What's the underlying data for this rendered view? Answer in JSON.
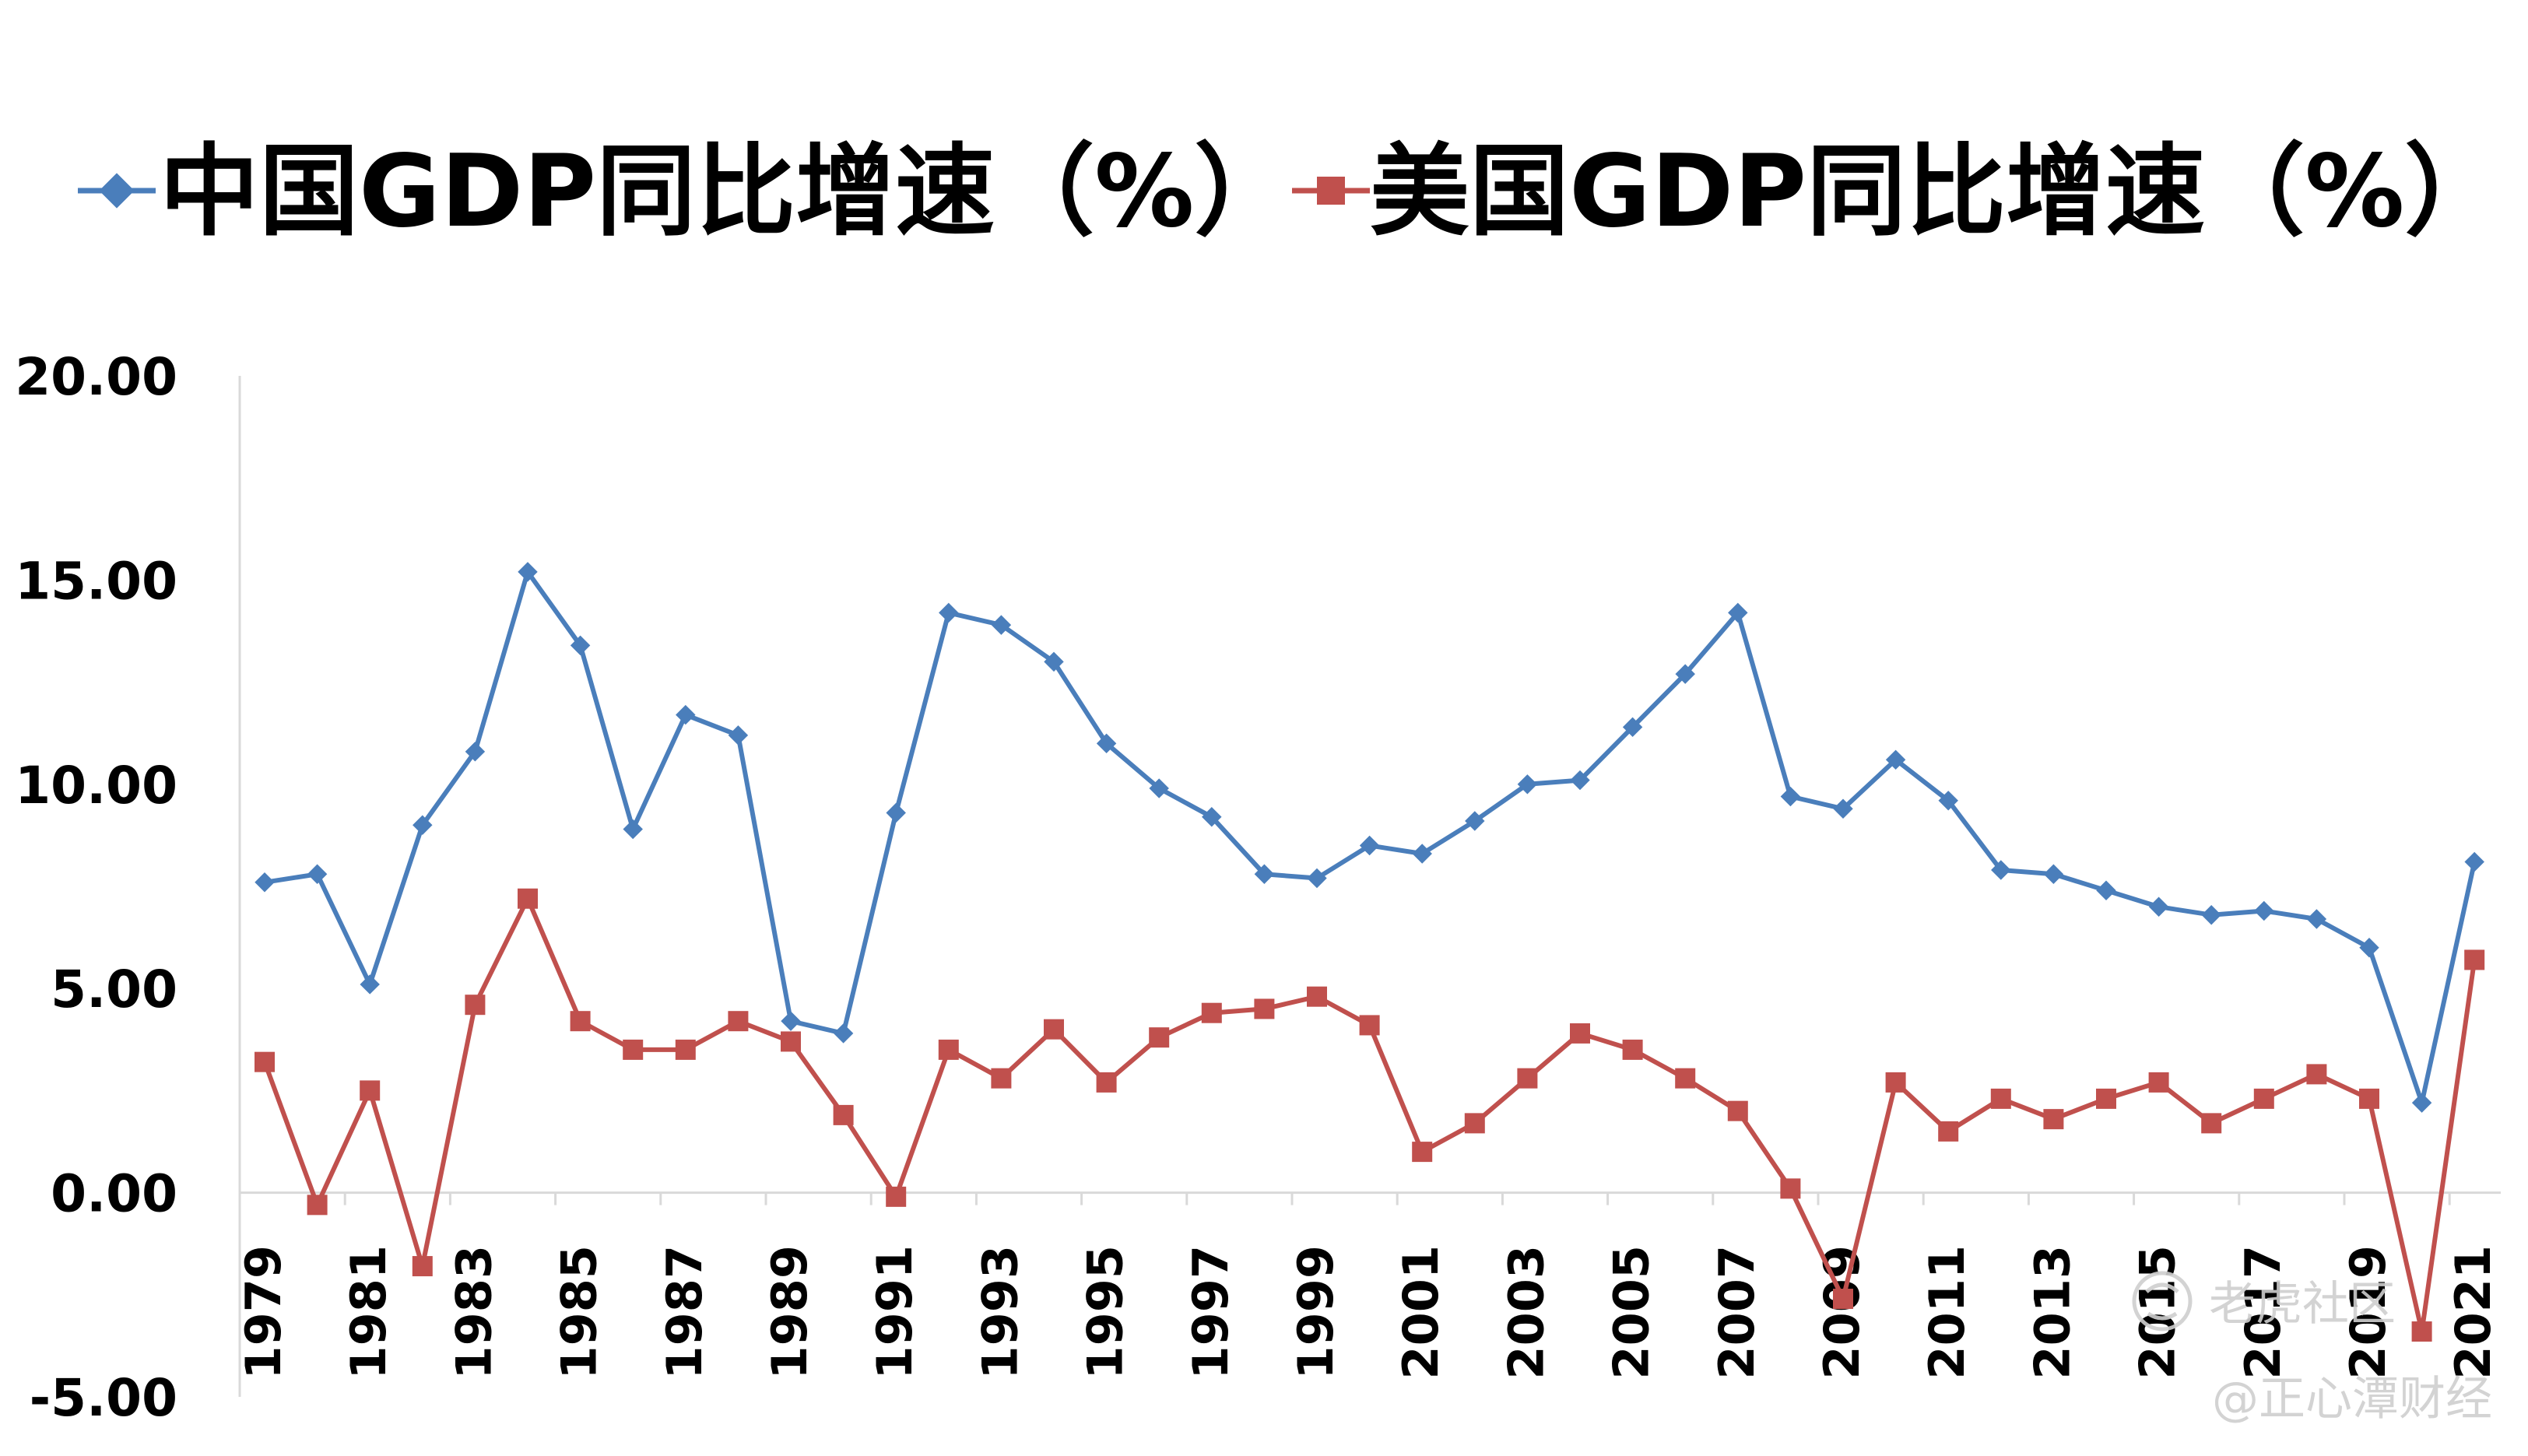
{
  "chart_data": {
    "type": "line",
    "x": [
      1979,
      1980,
      1981,
      1982,
      1983,
      1984,
      1985,
      1986,
      1987,
      1988,
      1989,
      1990,
      1991,
      1992,
      1993,
      1994,
      1995,
      1996,
      1997,
      1998,
      1999,
      2000,
      2001,
      2002,
      2003,
      2004,
      2005,
      2006,
      2007,
      2008,
      2009,
      2010,
      2011,
      2012,
      2013,
      2014,
      2015,
      2016,
      2017,
      2018,
      2019,
      2020,
      2021
    ],
    "x_tick_labels": [
      "1979",
      "1981",
      "1983",
      "1985",
      "1987",
      "1989",
      "1991",
      "1993",
      "1995",
      "1997",
      "1999",
      "2001",
      "2003",
      "2005",
      "2007",
      "2009",
      "2011",
      "2013",
      "2015",
      "2017",
      "2019",
      "2021"
    ],
    "y_tick_labels": [
      "20.00",
      "15.00",
      "10.00",
      "5.00",
      "0.00",
      "-5.00"
    ],
    "ylim": [
      -5,
      20
    ],
    "y_major_unit": 5,
    "grid": false,
    "legend_position": "top",
    "series": [
      {
        "name": "中国GDP同比增速（%）",
        "color": "#4a7ebb",
        "marker": "diamond",
        "values": [
          7.6,
          7.8,
          5.1,
          9.0,
          10.8,
          15.2,
          13.4,
          8.9,
          11.7,
          11.2,
          4.2,
          3.9,
          9.3,
          14.2,
          13.9,
          13.0,
          11.0,
          9.9,
          9.2,
          7.8,
          7.7,
          8.5,
          8.3,
          9.1,
          10.0,
          10.1,
          11.4,
          12.7,
          14.2,
          9.7,
          9.4,
          10.6,
          9.6,
          7.9,
          7.8,
          7.4,
          7.0,
          6.8,
          6.9,
          6.7,
          6.0,
          2.2,
          8.1
        ]
      },
      {
        "name": "美国GDP同比增速（%）",
        "color": "#c0504d",
        "marker": "square",
        "values": [
          3.2,
          -0.3,
          2.5,
          -1.8,
          4.6,
          7.2,
          4.2,
          3.5,
          3.5,
          4.2,
          3.7,
          1.9,
          -0.1,
          3.5,
          2.8,
          4.0,
          2.7,
          3.8,
          4.4,
          4.5,
          4.8,
          4.1,
          1.0,
          1.7,
          2.8,
          3.9,
          3.5,
          2.8,
          2.0,
          0.1,
          -2.6,
          2.7,
          1.5,
          2.3,
          1.8,
          2.3,
          2.7,
          1.7,
          2.3,
          2.9,
          2.3,
          -3.4,
          5.7
        ]
      }
    ]
  },
  "watermark": {
    "line1": "老虎社区",
    "line2": "@正心潭财经"
  }
}
